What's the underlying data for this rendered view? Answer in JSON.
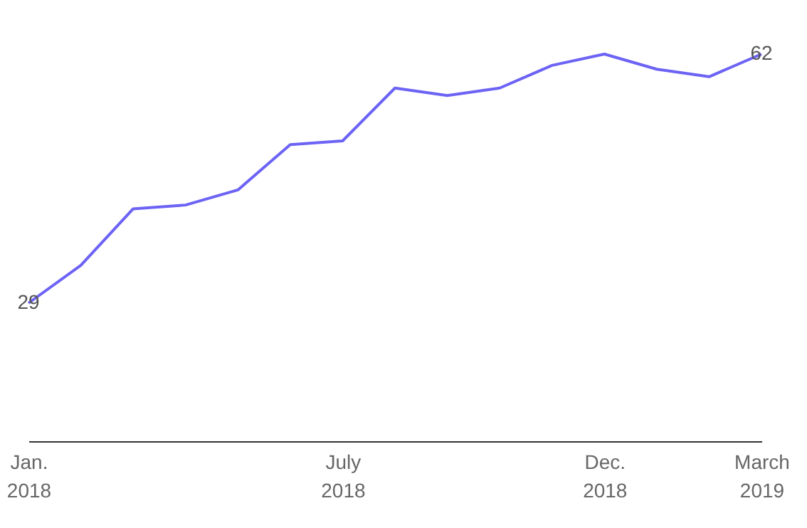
{
  "chart_data": {
    "type": "line",
    "categories": [
      "Jan. 2018",
      null,
      null,
      null,
      null,
      null,
      "July 2018",
      null,
      null,
      null,
      null,
      "Dec. 2018",
      null,
      null,
      "March 2019"
    ],
    "series": [
      {
        "color": "#6c63f5",
        "values": [
          29,
          34,
          41.5,
          42,
          44,
          50,
          50.5,
          57.5,
          56.5,
          57.5,
          60.5,
          62,
          60,
          59,
          62
        ],
        "value_labels": [
          "29",
          null,
          null,
          null,
          null,
          null,
          null,
          null,
          null,
          null,
          null,
          null,
          null,
          null,
          "62"
        ]
      }
    ],
    "tick_labels": "x"
  }
}
